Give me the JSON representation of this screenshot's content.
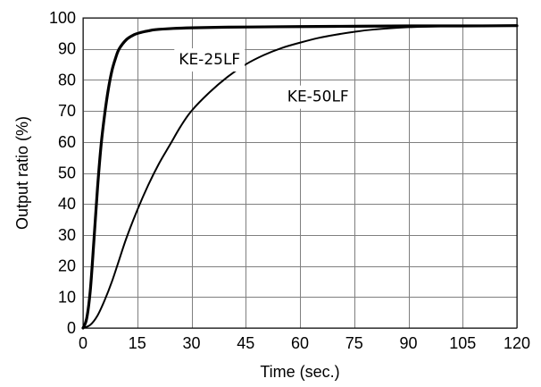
{
  "chart_data": {
    "type": "line",
    "title": "",
    "xlabel": "Time (sec.)",
    "ylabel": "Output ratio (%)",
    "xlim": [
      0,
      120
    ],
    "ylim": [
      0,
      100
    ],
    "x_ticks": [
      0,
      15,
      30,
      45,
      60,
      75,
      90,
      105,
      120
    ],
    "y_ticks": [
      0,
      10,
      20,
      30,
      40,
      50,
      60,
      70,
      80,
      90,
      100
    ],
    "grid": true,
    "legend": "none",
    "series": [
      {
        "name": "KE-25LF",
        "color": "#000000",
        "x": [
          0,
          1,
          2,
          3,
          4,
          5,
          6,
          7,
          8,
          9,
          10,
          12,
          14,
          16,
          18,
          20,
          25,
          30,
          40,
          50,
          60,
          75,
          90,
          105,
          120
        ],
        "y": [
          0,
          3,
          12,
          28,
          45,
          59,
          69,
          77,
          83,
          87,
          90,
          93,
          94.5,
          95.3,
          95.8,
          96.2,
          96.6,
          96.8,
          97,
          97.1,
          97.2,
          97.3,
          97.4,
          97.4,
          97.5
        ]
      },
      {
        "name": "KE-50LF",
        "color": "#000000",
        "x": [
          0,
          2,
          4,
          6,
          8,
          10,
          12,
          15,
          18,
          21,
          24,
          27,
          30,
          35,
          40,
          45,
          50,
          55,
          60,
          65,
          70,
          75,
          80,
          90,
          100,
          110,
          120
        ],
        "y": [
          0,
          1,
          4,
          9,
          15,
          22,
          29,
          38,
          46,
          53,
          59,
          65,
          70,
          76,
          81,
          85,
          88,
          90.3,
          92,
          93.5,
          94.6,
          95.5,
          96.2,
          97,
          97.3,
          97.5,
          97.6
        ]
      }
    ],
    "annotations": [
      {
        "text": "KE-25LF",
        "x": 35,
        "y": 85
      },
      {
        "text": "KE-50LF",
        "x": 65,
        "y": 73
      }
    ]
  }
}
